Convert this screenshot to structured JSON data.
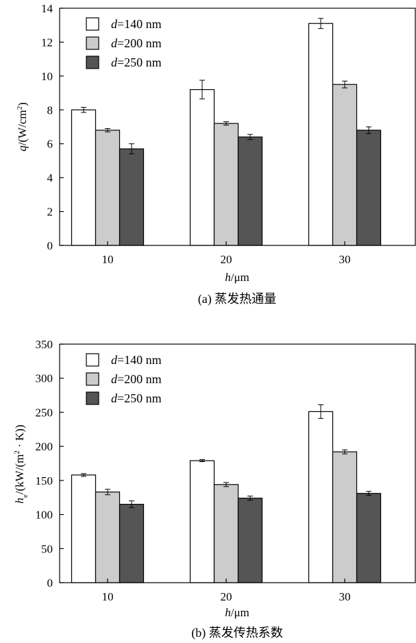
{
  "chart_data": [
    {
      "type": "bar",
      "caption": "(a) 蒸发热通量",
      "xlabel": "h/μm",
      "ylabel": "q/(W/cm²)",
      "categories": [
        "10",
        "20",
        "30"
      ],
      "ylim": [
        0,
        14
      ],
      "yticks": [
        0,
        2,
        4,
        6,
        8,
        10,
        12,
        14
      ],
      "legend_position": "top-left",
      "series": [
        {
          "name": "d=140 nm",
          "values": [
            8.0,
            9.2,
            13.1
          ],
          "errors": [
            0.15,
            0.55,
            0.3
          ],
          "color": "#ffffff"
        },
        {
          "name": "d=200 nm",
          "values": [
            6.8,
            7.2,
            9.5
          ],
          "errors": [
            0.1,
            0.1,
            0.2
          ],
          "color": "#cccccc"
        },
        {
          "name": "d=250 nm",
          "values": [
            5.7,
            6.4,
            6.8
          ],
          "errors": [
            0.3,
            0.15,
            0.2
          ],
          "color": "#555555"
        }
      ]
    },
    {
      "type": "bar",
      "caption": "(b) 蒸发传热系数",
      "xlabel": "h/μm",
      "ylabel": "he/(kW/(m²·K))",
      "categories": [
        "10",
        "20",
        "30"
      ],
      "ylim": [
        0,
        350
      ],
      "yticks": [
        0,
        50,
        100,
        150,
        200,
        250,
        300,
        350
      ],
      "legend_position": "top-left",
      "series": [
        {
          "name": "d=140 nm",
          "values": [
            158,
            179,
            251
          ],
          "errors": [
            2,
            1.5,
            10
          ],
          "color": "#ffffff"
        },
        {
          "name": "d=200 nm",
          "values": [
            133,
            144,
            192
          ],
          "errors": [
            4,
            3,
            3
          ],
          "color": "#cccccc"
        },
        {
          "name": "d=250 nm",
          "values": [
            115,
            124,
            131
          ],
          "errors": [
            5,
            3,
            3
          ],
          "color": "#555555"
        }
      ]
    }
  ]
}
